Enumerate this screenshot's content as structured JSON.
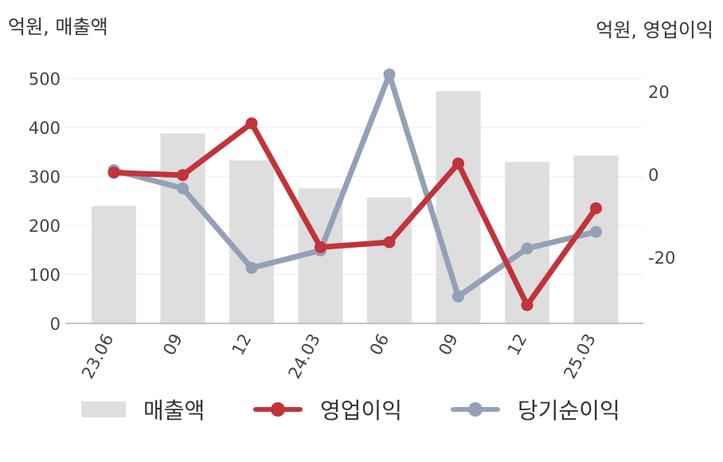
{
  "chart_data": {
    "type": "bar+line",
    "left_axis_unit": "억원, 매출액",
    "right_axis_unit": "억원, 영업이익",
    "categories": [
      "23.06",
      "09",
      "12",
      "24.03",
      "06",
      "09",
      "12",
      "25.03"
    ],
    "y_left": {
      "min": 0,
      "max": 550,
      "ticks": [
        0,
        100,
        200,
        300,
        400,
        500
      ]
    },
    "y_right": {
      "min": -36,
      "max": 29,
      "ticks": [
        20,
        0,
        -20
      ]
    },
    "grid": true,
    "legend_position": "bottom",
    "series": [
      {
        "name": "매출액",
        "type": "bar",
        "axis": "left",
        "color": "#dedede",
        "values": [
          240,
          388,
          333,
          276,
          257,
          474,
          330,
          343
        ]
      },
      {
        "name": "영업이익",
        "type": "line",
        "axis": "right",
        "color": "#c0343a",
        "values": [
          0.4,
          -0.2,
          12.3,
          -17.6,
          -16.4,
          2.6,
          -31.6,
          -8.2
        ]
      },
      {
        "name": "당기순이익",
        "type": "line",
        "axis": "right",
        "color": "#94a0b8",
        "values": [
          1.0,
          -3.4,
          -22.6,
          -18.4,
          24.1,
          -29.5,
          -17.9,
          -13.9
        ]
      }
    ]
  }
}
